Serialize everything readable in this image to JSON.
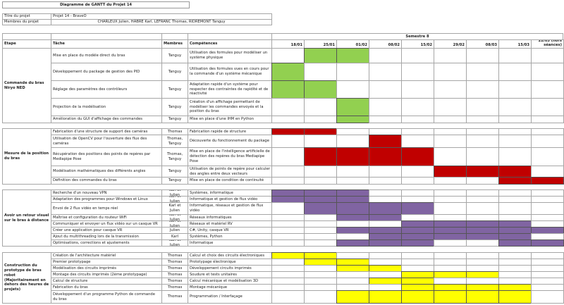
{
  "title": "Diagramme de GANTT du Projet 14",
  "project_info": {
    "title_label": "Titre du projet",
    "title_value": "Projet 14 - BraveO",
    "members_label": "Membres du projet",
    "members_value": "CHARLEUX Julien, HABRE Karl, LEFRANC Thomas, RIDREMONT Tanguy"
  },
  "table_header": {
    "etape": "Etape",
    "tache": "Tâche",
    "membres": "Membres",
    "competences": "Compétences",
    "semester": "Semestre 8",
    "weeks": [
      "18/01",
      "25/01",
      "01/02",
      "08/02",
      "15/02",
      "29/02",
      "08/03",
      "15/03",
      "22/03 (hors séances)"
    ]
  },
  "colors": {
    "group1": "#92d050",
    "group2": "#c00000",
    "group3": "#8064a2",
    "group4": "#ffff00",
    "grid": "#a6a6a6"
  },
  "chart_data": {
    "type": "table",
    "title": "Diagramme de GANTT du Projet 14",
    "categories": [
      "18/01",
      "25/01",
      "01/02",
      "08/02",
      "15/02",
      "29/02",
      "08/03",
      "15/03",
      "22/03 (hors séances)"
    ],
    "groups": [
      {
        "name": "Commande du bras Niryo NED",
        "color": "#92d050",
        "tasks": [
          {
            "task": "Mise en place du modèle direct du bras",
            "members": "Tanguy",
            "skills": "Utilisation des formules pour modéliser un système physique",
            "weeks": [
              1,
              2
            ]
          },
          {
            "task": "Développement du package de gestion des PID",
            "members": "Tanguy",
            "skills": "Utilisation des formules vues en cours pour la commande d'un système mécanique",
            "weeks": [
              0
            ]
          },
          {
            "task": "Réglage des paramètres des contrôleurs",
            "members": "Tanguy",
            "skills": "Adaptation rapide d'un système pour respecter des contraintes de rapidité et de réactivité",
            "weeks": [
              0,
              1
            ]
          },
          {
            "task": "Projection de la modélisation",
            "members": "Tanguy",
            "skills": "Création d'un affichage permettant de modéliser les commandes envoyés et la position du bras",
            "weeks": [
              2
            ]
          },
          {
            "task": "Amélioration du GUI d'affichage des commandes",
            "members": "Tanguy",
            "skills": "Mise en place d'une IHM en Python",
            "weeks": [
              2
            ]
          }
        ]
      },
      {
        "name": "Mesure de la position du bras",
        "color": "#c00000",
        "tasks": [
          {
            "task": "Fabrication d'une structure de support des caméras",
            "members": "Thomas",
            "skills": "Fabrication rapide de structure",
            "weeks": [
              0,
              1
            ]
          },
          {
            "task": "Utilisation de OpenCV pour l'ouverture des flux des caméras",
            "members": "Thomas, Tanguy",
            "skills": "Découverte du fonctionnement du package",
            "weeks": [
              3
            ]
          },
          {
            "task": "Récupération des positions des points de repères par Mediapipe Pose",
            "members": "Thomas, Tanguy",
            "skills": "Mise en place de l'intelligence artificielle de détection des repères du bras Mediapipe Pose",
            "weeks": [
              1,
              2,
              3,
              4
            ]
          },
          {
            "task": "Modélisation mathématiques des différents angles",
            "members": "Tanguy",
            "skills": "Utilisation de points de repère pour calculer des angles entre deux vecteurs",
            "weeks": [
              5,
              6,
              7
            ]
          },
          {
            "task": "Définition des commandes du bras",
            "members": "Tanguy",
            "skills": "Mise en place de condition de continuité",
            "weeks": [
              7,
              8
            ]
          }
        ]
      },
      {
        "name": "Avoir un retour visuel sur le bras à distance",
        "color": "#8064a2",
        "tasks": [
          {
            "task": "Recherche d'un nouveau VPN",
            "members": "Karl et Julien",
            "skills": "Systèmes, informatique",
            "weeks": [
              0,
              1,
              2
            ]
          },
          {
            "task": "Adaptation des programmes pour Windows et Linux",
            "members": "Karl et Julien",
            "skills": "Informatique et gestion de flux vidéo",
            "weeks": [
              0,
              1,
              2
            ]
          },
          {
            "task": "Envoi de 2 flux vidéo en temps réel",
            "members": "Karl et Julien",
            "skills": "Informatique, réseaux et gestion de flux vidéo",
            "weeks": [
              1,
              2,
              3,
              4
            ]
          },
          {
            "task": "Maîtrise et configuration du routeur WiFi",
            "members": "Karl et Julien",
            "skills": "Réseaux informatiques",
            "weeks": [
              2,
              3
            ]
          },
          {
            "task": "Communiquer et envoyer un flux vidéo sur un casque VR",
            "members": "Karl et Julien",
            "skills": "Réseaux et matériel RV",
            "weeks": [
              4,
              5,
              6,
              7
            ]
          },
          {
            "task": "Créer une application pour casque VR",
            "members": "Julien",
            "skills": "C#, Unity, casque VR",
            "weeks": [
              2,
              3,
              4,
              5,
              6,
              7,
              8
            ]
          },
          {
            "task": "Ajout du multithreading lors de la transmission",
            "members": "Karl",
            "skills": "Systèmes, Python",
            "weeks": [
              3,
              4,
              5,
              6,
              7
            ]
          },
          {
            "task": "Optimisations, corrections et ajustements",
            "members": "Karl et Julien",
            "skills": "Informatique",
            "weeks": [
              2,
              3,
              4,
              7,
              8
            ]
          }
        ]
      },
      {
        "name": "Construction du prototype de bras robot (Majoritairement en dehors des heures de projets)",
        "color": "#ffff00",
        "tasks": [
          {
            "task": "Création de l'architecture matériel",
            "members": "Thomas",
            "skills": "Calcul et choix des circuits électroniques",
            "weeks": [
              0,
              1
            ]
          },
          {
            "task": "Premier prototypage",
            "members": "Thomas",
            "skills": "Prototypage électronique",
            "weeks": [
              1,
              2
            ]
          },
          {
            "task": "Modélisation des circuits imprimés",
            "members": "Thomas",
            "skills": "Développement circuits imprimés",
            "weeks": [
              2,
              3
            ]
          },
          {
            "task": "Montage des circuits imprimés (2ème prototypage)",
            "members": "Thomas",
            "skills": "Soudure et tests unitaires",
            "weeks": [
              4,
              5,
              6
            ]
          },
          {
            "task": "Calcul de structure",
            "members": "Thomas",
            "skills": "Calcul mécanique et modélisation 3D",
            "weeks": [
              3,
              4
            ]
          },
          {
            "task": "Fabrication du bras",
            "members": "Thomas",
            "skills": "Montage mécanique",
            "weeks": [
              4,
              5,
              6,
              7
            ]
          },
          {
            "task": "Développement d'un programme Python de commande du bras",
            "members": "Thomas",
            "skills": "Programmation / Interfaçage",
            "weeks": [
              2,
              3,
              4,
              5,
              6,
              7
            ]
          }
        ]
      }
    ]
  }
}
